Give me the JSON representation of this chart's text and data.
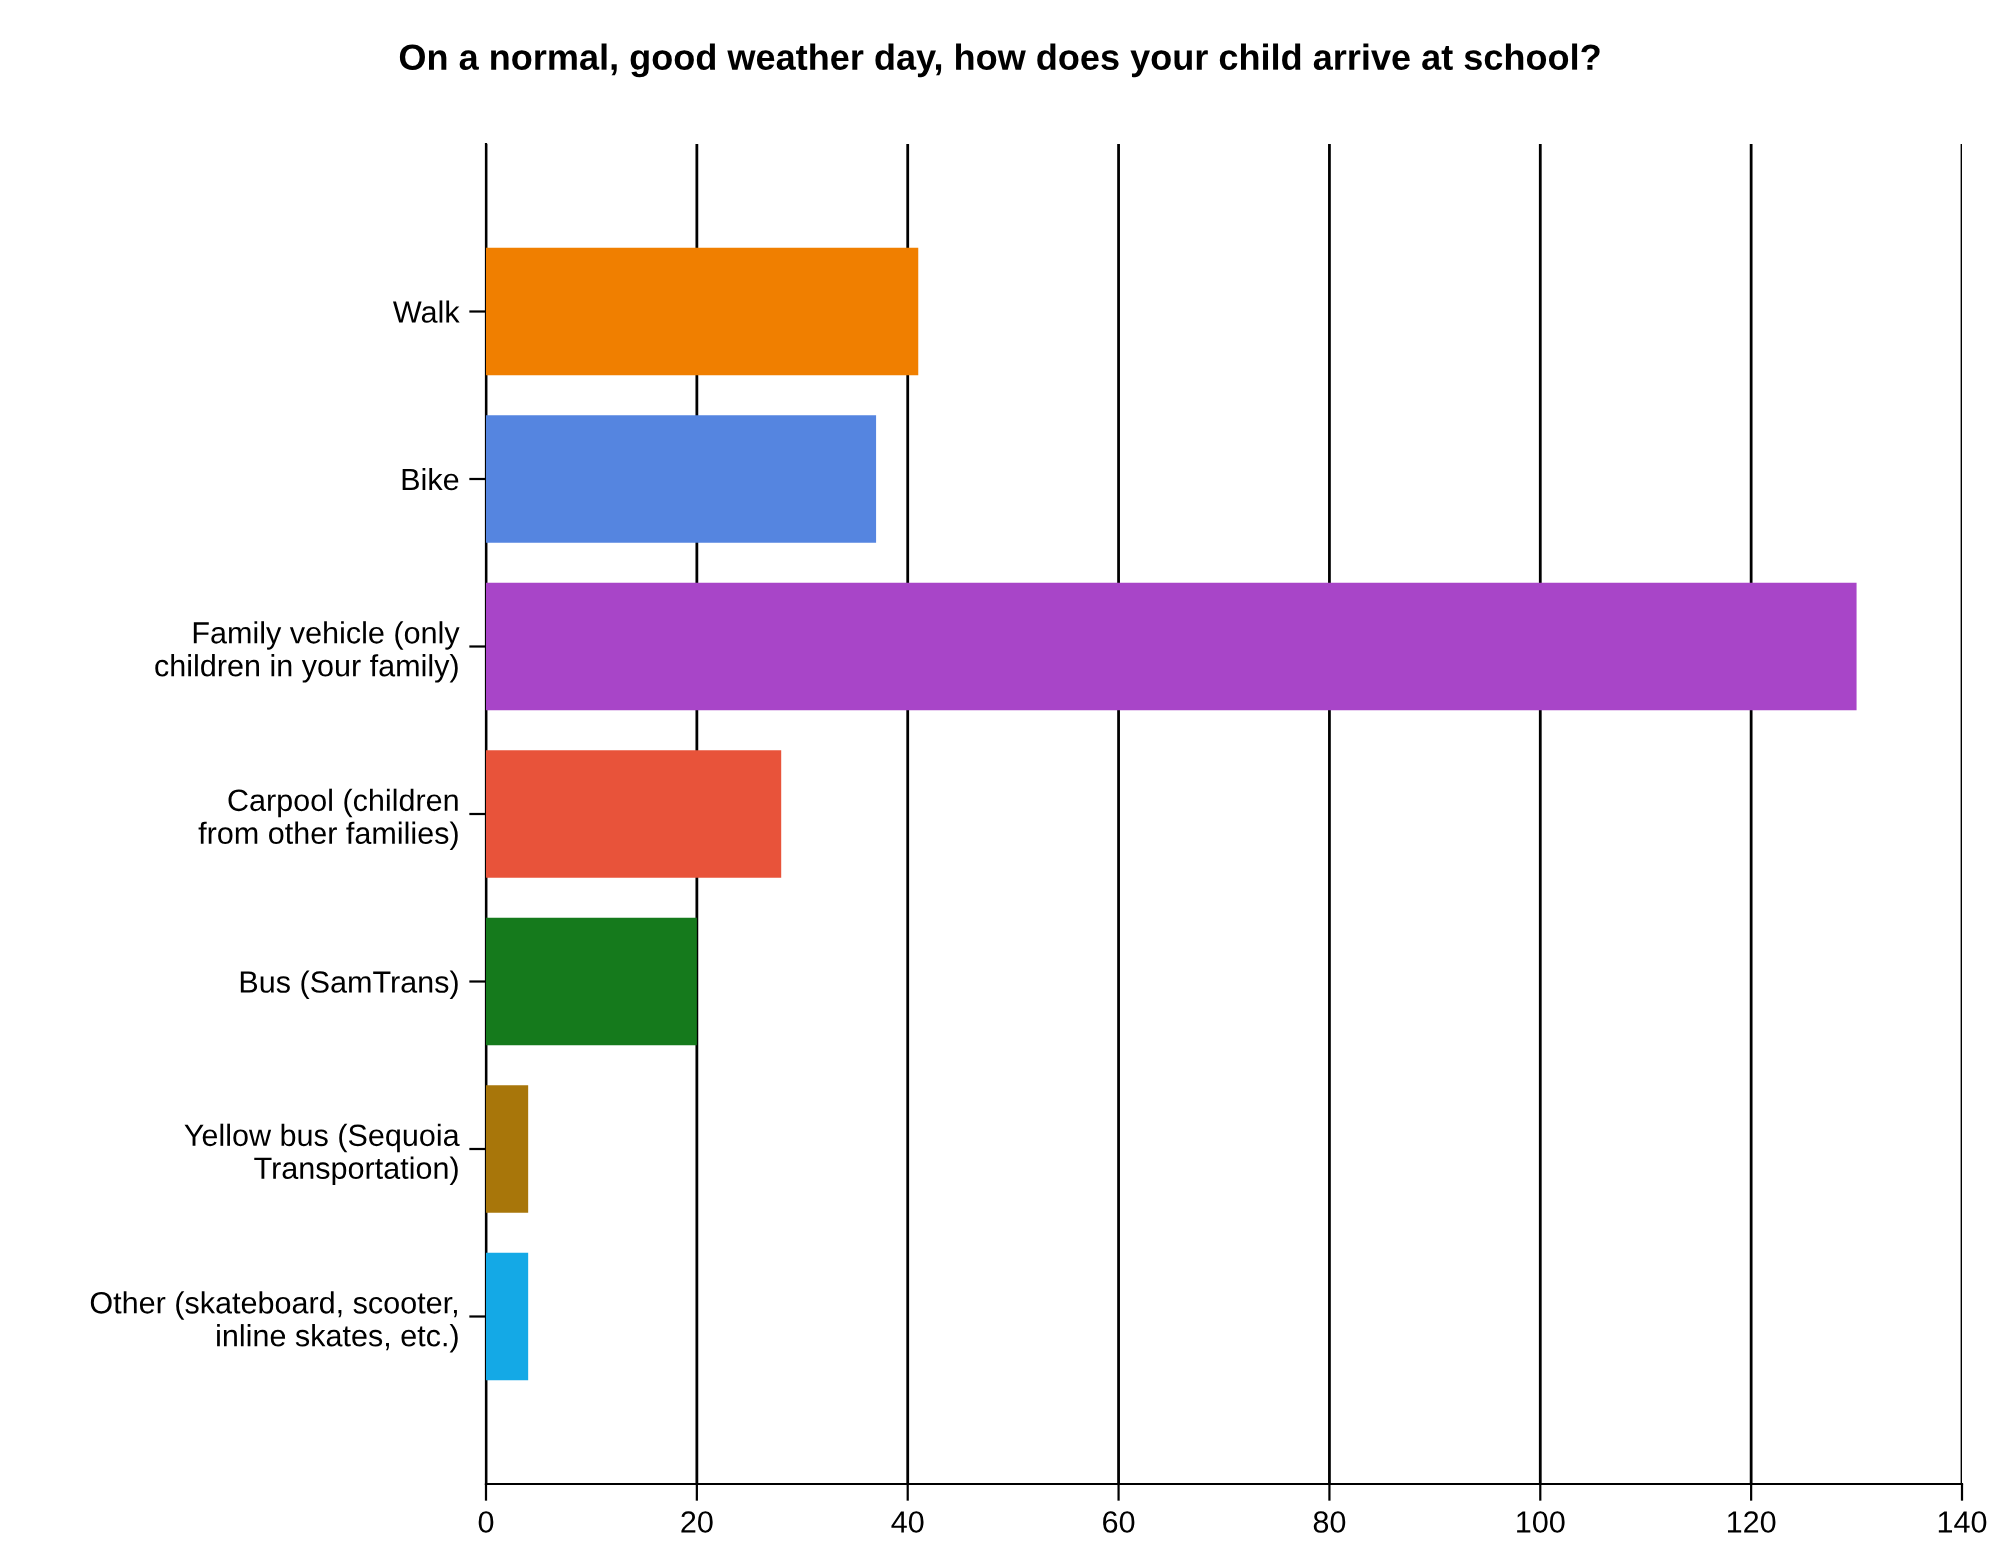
{
  "chart_data": {
    "type": "bar",
    "orientation": "horizontal",
    "title": "On a normal, good weather day, how does your child arrive at school?",
    "categories": [
      "Walk",
      "Bike",
      "Family vehicle (only\nchildren in your family)",
      "Carpool (children\nfrom other families)",
      "Bus (SamTrans)",
      "Yellow bus (Sequoia\nTransportation)",
      "Other (skateboard, scooter,\ninline skates, etc.)"
    ],
    "values": [
      41,
      37,
      130,
      28,
      20,
      4,
      4
    ],
    "colors": [
      "#f07f00",
      "#5585e0",
      "#a845c8",
      "#e8533a",
      "#157a1c",
      "#a8760a",
      "#14a9e6"
    ],
    "xlim": [
      0,
      140
    ],
    "xticks": [
      0,
      20,
      40,
      60,
      80,
      100,
      120,
      140
    ],
    "grid": "x"
  }
}
